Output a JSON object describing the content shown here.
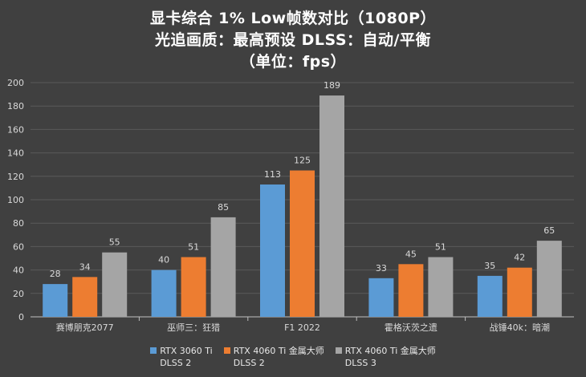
{
  "chart_data": {
    "type": "bar",
    "title_lines": [
      "显卡综合 1% Low帧数对比（1080P）",
      "光追画质：最高预设     DLSS：自动/平衡",
      "（单位：fps）"
    ],
    "categories": [
      "赛博朋克2077",
      "巫师三：狂猎",
      "F1 2022",
      "霍格沃茨之遗",
      "战锤40k：暗潮"
    ],
    "series": [
      {
        "name": "RTX 3060 Ti\nDLSS 2",
        "color": "#5b9bd5",
        "values": [
          28,
          40,
          113,
          33,
          35
        ]
      },
      {
        "name": "RTX 4060 Ti 金属大师\nDLSS 2",
        "color": "#ed7d31",
        "values": [
          34,
          51,
          125,
          45,
          42
        ]
      },
      {
        "name": "RTX 4060 Ti 金属大师\nDLSS 3",
        "color": "#a5a5a5",
        "values": [
          55,
          85,
          189,
          51,
          65
        ]
      }
    ],
    "ylim": [
      0,
      200
    ],
    "yticks": [
      0,
      20,
      40,
      60,
      80,
      100,
      120,
      140,
      160,
      180,
      200
    ],
    "grid": true,
    "legend": "bottom",
    "colors": {
      "background": "#404040",
      "gridline": "#5a5a5a",
      "axis": "#bfbfbf",
      "text": "#d9d9d9"
    }
  }
}
